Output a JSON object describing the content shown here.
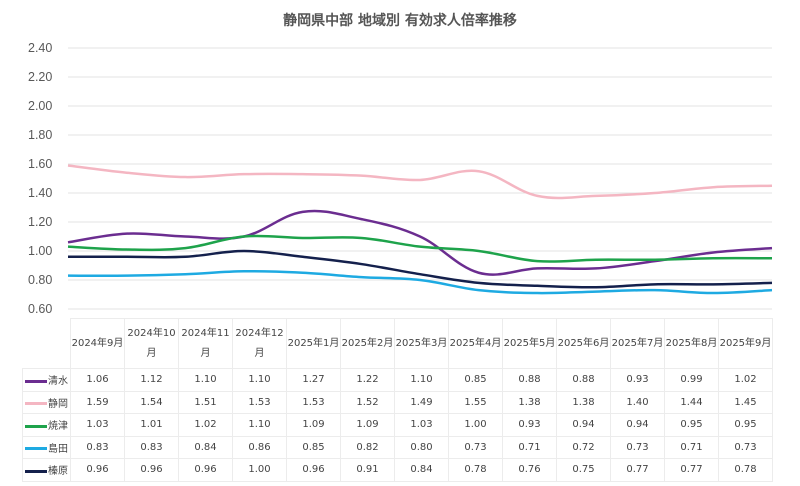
{
  "chart_data": {
    "type": "line",
    "title": "静岡県中部 地域別 有効求人倍率推移",
    "categories": [
      "2024年9月",
      "2024年10月",
      "2024年11月",
      "2024年12月",
      "2025年1月",
      "2025年2月",
      "2025年3月",
      "2025年4月",
      "2025年5月",
      "2025年6月",
      "2025年7月",
      "2025年8月",
      "2025年9月"
    ],
    "ylim": [
      0.6,
      2.4
    ],
    "yticks": [
      "0.60",
      "0.80",
      "1.00",
      "1.20",
      "1.40",
      "1.60",
      "1.80",
      "2.00",
      "2.20",
      "2.40"
    ],
    "grid": true,
    "legend": "data-table",
    "series": [
      {
        "name": "清水",
        "color": "#6b2d90",
        "values": [
          1.06,
          1.12,
          1.1,
          1.1,
          1.27,
          1.22,
          1.1,
          0.85,
          0.88,
          0.88,
          0.93,
          0.99,
          1.02
        ]
      },
      {
        "name": "静岡",
        "color": "#f4b6c2",
        "values": [
          1.59,
          1.54,
          1.51,
          1.53,
          1.53,
          1.52,
          1.49,
          1.55,
          1.38,
          1.38,
          1.4,
          1.44,
          1.45
        ]
      },
      {
        "name": "焼津",
        "color": "#1ea34b",
        "values": [
          1.03,
          1.01,
          1.02,
          1.1,
          1.09,
          1.09,
          1.03,
          1.0,
          0.93,
          0.94,
          0.94,
          0.95,
          0.95
        ]
      },
      {
        "name": "島田",
        "color": "#1eaae2",
        "values": [
          0.83,
          0.83,
          0.84,
          0.86,
          0.85,
          0.82,
          0.8,
          0.73,
          0.71,
          0.72,
          0.73,
          0.71,
          0.73
        ]
      },
      {
        "name": "榛原",
        "color": "#14204c",
        "values": [
          0.96,
          0.96,
          0.96,
          1.0,
          0.96,
          0.91,
          0.84,
          0.78,
          0.76,
          0.75,
          0.77,
          0.77,
          0.78
        ]
      }
    ]
  }
}
